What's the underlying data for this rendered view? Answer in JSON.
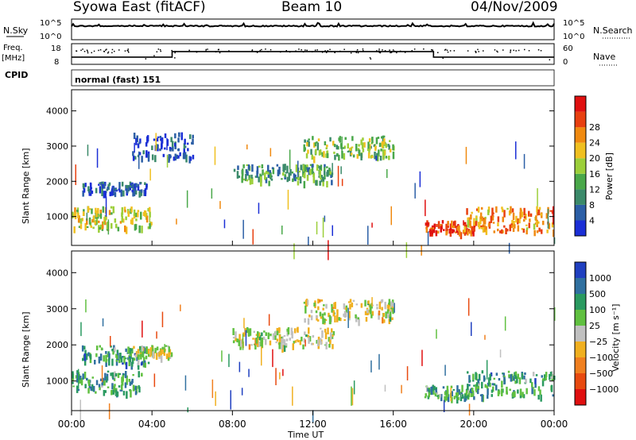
{
  "header": {
    "station": "Syowa East (fitACF)",
    "beam": "Beam 10",
    "date": "04/Nov/2009"
  },
  "noise_panel": {
    "left_label": "N.Sky",
    "right_label": "N.Search",
    "tick_top": "10^5",
    "tick_bottom": "10^0"
  },
  "freq_panel": {
    "label_line1": "Freq.",
    "label_line2": "[MHz]",
    "right_label": "Nave",
    "left_ticks": [
      "18",
      "8"
    ],
    "right_ticks": [
      "60",
      "0"
    ],
    "freq_steps": [
      {
        "from_hour": 0,
        "to_hour": 5,
        "level": 0.35
      },
      {
        "from_hour": 5,
        "to_hour": 18,
        "level": 0.62
      },
      {
        "from_hour": 18,
        "to_hour": 24,
        "level": 0.35
      }
    ]
  },
  "cpid": {
    "label": "CPID",
    "mode": "normal (fast) 151"
  },
  "chart_data": [
    {
      "type": "heatmap",
      "name": "power",
      "ylabel": "Slant Range [km]",
      "yticks": [
        "1000",
        "2000",
        "3000",
        "4000"
      ],
      "ylim": [
        180,
        4600
      ],
      "colorbar_label": "Power [dB]",
      "colorbar_ticks": [
        "4",
        "8",
        "12",
        "16",
        "20",
        "24",
        "28"
      ],
      "colors": [
        "#1b2fd6",
        "#2c5fa6",
        "#3b8a6a",
        "#4aa84a",
        "#9ccf3a",
        "#f0c020",
        "#f08a10",
        "#e84010",
        "#e01010"
      ],
      "regions": [
        {
          "x0": 0.0,
          "x1": 4.0,
          "y0": 700,
          "y1": 1300,
          "level": 0.55
        },
        {
          "x0": 0.5,
          "x1": 3.8,
          "y0": 1700,
          "y1": 2000,
          "level": 0.15
        },
        {
          "x0": 3.0,
          "x1": 6.0,
          "y0": 2700,
          "y1": 3400,
          "level": 0.1
        },
        {
          "x0": 8.0,
          "x1": 13.0,
          "y0": 2000,
          "y1": 2500,
          "level": 0.35
        },
        {
          "x0": 11.5,
          "x1": 16.0,
          "y0": 2700,
          "y1": 3300,
          "level": 0.45
        },
        {
          "x0": 17.5,
          "x1": 20.0,
          "y0": 550,
          "y1": 900,
          "level": 0.85
        },
        {
          "x0": 19.5,
          "x1": 24.0,
          "y0": 600,
          "y1": 1300,
          "level": 0.7
        }
      ]
    },
    {
      "type": "heatmap",
      "name": "velocity",
      "ylabel": "Slant Range [km]",
      "yticks": [
        "1000",
        "2000",
        "3000",
        "4000"
      ],
      "ylim": [
        180,
        4600
      ],
      "colorbar_label": "Velocity [m s⁻¹]",
      "colorbar_ticks": [
        "1000",
        "500",
        "100",
        "25",
        "−25",
        "−100",
        "−500",
        "−1000"
      ],
      "colors": [
        "#2040c0",
        "#3070a0",
        "#2a9a60",
        "#60c040",
        "#c0c0c0",
        "#f0b020",
        "#f08020",
        "#e84a10",
        "#e01010"
      ],
      "regions": [
        {
          "x0": 0.0,
          "x1": 3.5,
          "y0": 700,
          "y1": 1300,
          "level": 0.72
        },
        {
          "x0": 0.5,
          "x1": 3.8,
          "y0": 1500,
          "y1": 2000,
          "level": 0.72
        },
        {
          "x0": 3.0,
          "x1": 5.0,
          "y0": 1700,
          "y1": 2000,
          "level": 0.5
        },
        {
          "x0": 8.0,
          "x1": 13.0,
          "y0": 2000,
          "y1": 2500,
          "level": 0.5
        },
        {
          "x0": 11.5,
          "x1": 16.0,
          "y0": 2700,
          "y1": 3300,
          "level": 0.5
        },
        {
          "x0": 17.5,
          "x1": 20.0,
          "y0": 550,
          "y1": 900,
          "level": 0.7
        },
        {
          "x0": 19.5,
          "x1": 24.0,
          "y0": 600,
          "y1": 1300,
          "level": 0.72
        }
      ]
    }
  ],
  "x_axis": {
    "label": "Time UT",
    "ticks": [
      "00:00",
      "04:00",
      "08:00",
      "12:00",
      "16:00",
      "20:00",
      "00:00"
    ]
  }
}
